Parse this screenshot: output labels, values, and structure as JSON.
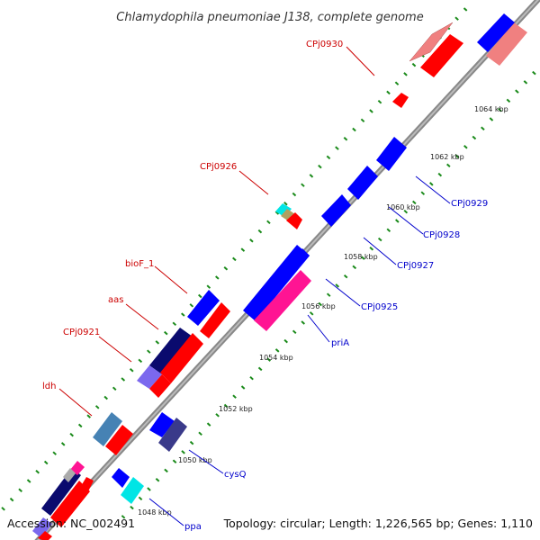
{
  "title": "Chlamydophila pneumoniae J138, complete genome",
  "footer": {
    "accession": "Accession: NC_002491",
    "summary": "Topology: circular; Length: 1,226,565 bp; Genes: 1,110"
  },
  "colors": {
    "forward_gene": "#ff0000",
    "reverse_gene": "#0000ff",
    "forward_label": "#cc0000",
    "reverse_label": "#0000cc",
    "backbone": "#888888",
    "tick": "#1a8a1a"
  },
  "ticks": [
    {
      "label": "1048 kbp"
    },
    {
      "label": "1050 kbp"
    },
    {
      "label": "1052 kbp"
    },
    {
      "label": "1054 kbp"
    },
    {
      "label": "1056 kbp"
    },
    {
      "label": "1058 kbp"
    },
    {
      "label": "1060 kbp"
    },
    {
      "label": "1062 kbp"
    },
    {
      "label": "1064 kbp"
    }
  ],
  "labels_forward": [
    "CPj0930",
    "CPj0926",
    "bioF_1",
    "aas",
    "CPj0921",
    "ldh"
  ],
  "labels_reverse": [
    "CPj0929",
    "CPj0928",
    "CPj0927",
    "CPj0925",
    "priA",
    "cysQ",
    "ppa"
  ]
}
